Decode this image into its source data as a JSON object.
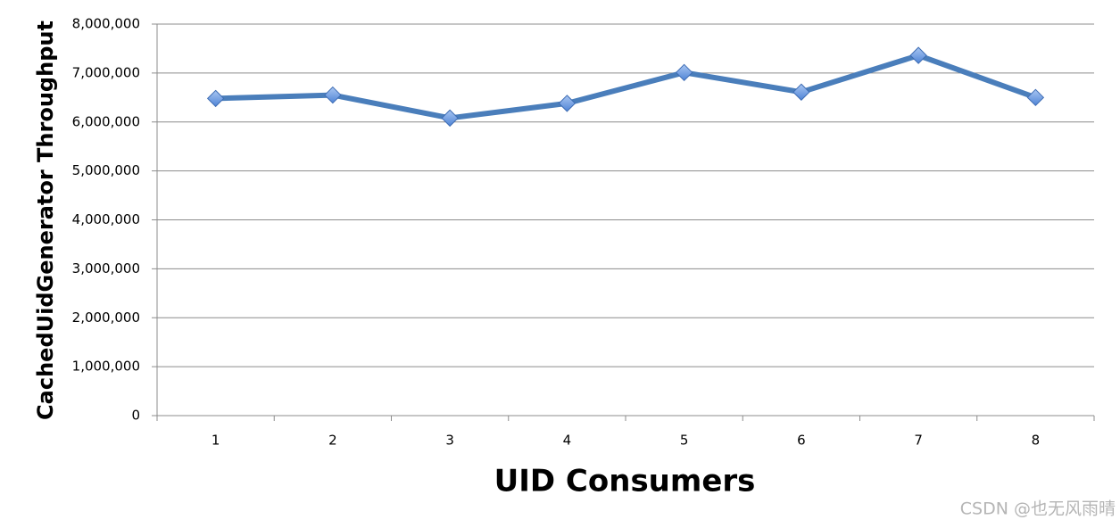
{
  "chart_data": {
    "type": "line",
    "x_label": "UID Consumers",
    "y_label": "CachedUidGenerator Throughput",
    "categories": [
      "1",
      "2",
      "3",
      "4",
      "5",
      "6",
      "7",
      "8"
    ],
    "series": [
      {
        "color": "#4a7ebb",
        "values": [
          6480000,
          6550000,
          6080000,
          6380000,
          7010000,
          6610000,
          7360000,
          6500000
        ]
      }
    ],
    "ylim": [
      0,
      8000000
    ],
    "yticks": [
      0,
      {
        "value": 1000000,
        "label": "1,000,000"
      },
      {
        "value": 2000000,
        "label": "2,000,000"
      },
      {
        "value": 3000000,
        "label": "3,000,000"
      },
      {
        "value": 4000000,
        "label": "4,000,000"
      },
      {
        "value": 5000000,
        "label": "5,000,000"
      },
      {
        "value": 6000000,
        "label": "6,000,000"
      },
      {
        "value": 7000000,
        "label": "7,000,000"
      },
      {
        "value": 8000000,
        "label": "8,000,000"
      }
    ],
    "grid": true,
    "watermark": "CSDN @也无风雨晴"
  }
}
